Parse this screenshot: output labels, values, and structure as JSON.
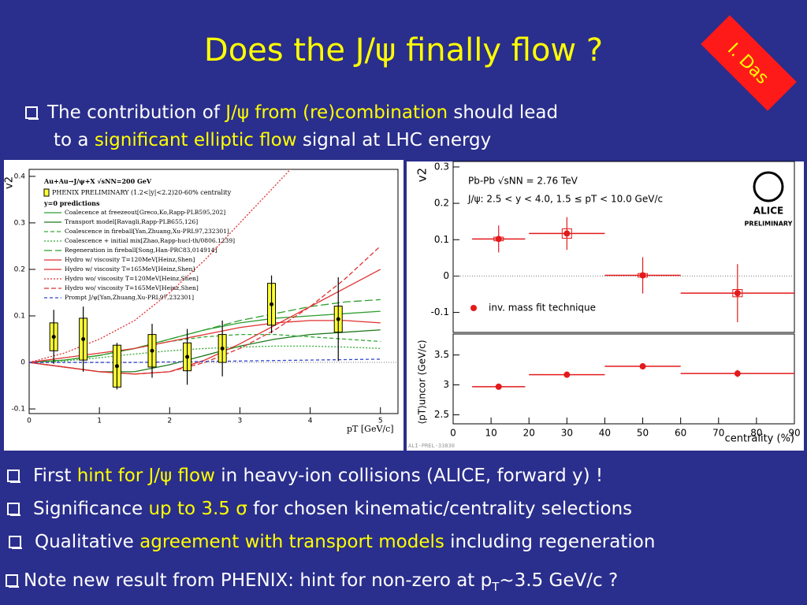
{
  "title": "Does the J/ψ finally flow ?",
  "corner_tag": "I. Das",
  "top_bullet": {
    "lines": [
      [
        {
          "text": "The contribution of "
        },
        {
          "text": "J/ψ from (re)combination",
          "highlight": true
        },
        {
          "text": " should lead"
        }
      ],
      [
        {
          "text": "to a "
        },
        {
          "text": "significant elliptic flow",
          "highlight": true
        },
        {
          "text": " signal at LHC energy"
        }
      ]
    ]
  },
  "bottom_bullets": [
    {
      "segments": [
        {
          "text": "First "
        },
        {
          "text": "hint for J/ψ flow",
          "highlight": true
        },
        {
          "text": " in heavy-ion collisions  (ALICE, forward y) !"
        }
      ]
    },
    {
      "segments": [
        {
          "text": "Significance "
        },
        {
          "text": "up to 3.5 σ",
          "highlight": true
        },
        {
          "text": " for chosen kinematic/centrality selections"
        }
      ]
    },
    {
      "segments": [
        {
          "text": "Qualitative "
        },
        {
          "text": "agreement with transport models",
          "highlight": true
        },
        {
          "text": " including regeneration"
        }
      ]
    },
    {
      "segments": [
        {
          "text": "Note new result from PHENIX: hint for non-zero at p"
        },
        {
          "text": "T",
          "sub": true
        },
        {
          "text": "~3.5 GeV/c ?"
        }
      ]
    }
  ],
  "chart_data": [
    {
      "type": "scatter",
      "xlabel": "pT [GeV/c]",
      "ylabel": "v2",
      "annotations": [
        "Au+Au→J/ψ+X  √sNN=200 GeV",
        "y=0 predictions"
      ],
      "xlim": [
        0,
        5.25
      ],
      "ylim": [
        -0.11,
        0.415
      ],
      "xticks": [
        0,
        1,
        2,
        3,
        4,
        5
      ],
      "yticks": [
        -0.1,
        0,
        0.1,
        0.2,
        0.3,
        0.4
      ],
      "series": [
        {
          "name": "PHENIX PRELIMINARY (1.2<|y|<2.2)20-60% centrality",
          "color": "#000000",
          "syst_color": "#ffff33",
          "x": [
            0.35,
            0.77,
            1.25,
            1.75,
            2.25,
            2.75,
            3.45,
            4.4
          ],
          "values": [
            0.055,
            0.05,
            -0.008,
            0.025,
            0.012,
            0.03,
            0.125,
            0.093
          ],
          "yerr": [
            0.058,
            0.07,
            0.05,
            0.058,
            0.06,
            0.06,
            0.062,
            0.09
          ],
          "syst": [
            0.03,
            0.045,
            0.045,
            0.035,
            0.03,
            0.03,
            0.045,
            0.028
          ]
        }
      ],
      "model_x": [
        0,
        0.5,
        1,
        1.5,
        2,
        2.5,
        3,
        3.5,
        4,
        4.5,
        5
      ],
      "models": [
        {
          "name": "Coalecence at freezeout[Greco,Ko,Rapp-PLB595,202]",
          "color": "#2e9e2e",
          "dash": "none",
          "values": [
            0,
            0.005,
            0.015,
            0.03,
            0.05,
            0.07,
            0.085,
            0.095,
            0.1,
            0.105,
            0.11
          ]
        },
        {
          "name": "Transport model[Ravagli,Rapp-PLB655,126]",
          "color": "#1f7a1f",
          "dash": "none",
          "values": [
            0,
            -0.01,
            -0.02,
            -0.02,
            -0.005,
            0.015,
            0.035,
            0.05,
            0.06,
            0.065,
            0.07
          ]
        },
        {
          "name": "Coalescence in fireball[Yan,Zhuang,Xu-PRL97,232301]",
          "color": "#33aa33",
          "dash": "5,3",
          "values": [
            0,
            0.005,
            0.015,
            0.03,
            0.045,
            0.055,
            0.06,
            0.06,
            0.055,
            0.05,
            0.045
          ]
        },
        {
          "name": "Coalescence + initial mix[Zhao,Rapp-hucl-th/0806.1239]",
          "color": "#33aa33",
          "dash": "2,2",
          "values": [
            0,
            0.003,
            0.01,
            0.018,
            0.025,
            0.03,
            0.033,
            0.035,
            0.035,
            0.033,
            0.03
          ]
        },
        {
          "name": "Regeneration in fireball[Song,Han-PRC83,014914]",
          "color": "#2e9e2e",
          "dash": "10,4",
          "values": [
            0,
            0.005,
            0.015,
            0.03,
            0.05,
            0.07,
            0.09,
            0.105,
            0.12,
            0.13,
            0.135
          ]
        },
        {
          "name": "Hydro w/ viscosity T=120MeV[Heinz,Shen]",
          "color": "#e03030",
          "dash": "none",
          "values": [
            0,
            0.01,
            0.02,
            0.03,
            0.045,
            0.06,
            0.075,
            0.085,
            0.09,
            0.09,
            0.085
          ]
        },
        {
          "name": "Hydro w/ viscosity T=165MeV[Heinz,Shen]",
          "color": "#e03030",
          "dash": "none",
          "values": [
            0,
            -0.01,
            -0.02,
            -0.025,
            -0.02,
            0.005,
            0.04,
            0.08,
            0.12,
            0.16,
            0.2
          ]
        },
        {
          "name": "Hydro wo/ viscosity T=120MeV[Heinz,Shen]",
          "color": "#e03030",
          "dash": "2,2",
          "values": [
            0,
            0.02,
            0.05,
            0.09,
            0.15,
            0.22,
            0.3,
            0.38,
            0.46,
            0.54,
            0.62
          ]
        },
        {
          "name": "Hydro wo/ viscosity T=165MeV[Heinz,Shen]",
          "color": "#e03030",
          "dash": "6,3",
          "values": [
            0,
            -0.01,
            -0.02,
            -0.025,
            -0.02,
            0,
            0.03,
            0.07,
            0.12,
            0.18,
            0.25
          ]
        },
        {
          "name": "Prompt J/ψ[Yan,Zhuang,Xu-PRL97,232301]",
          "color": "#3344cc",
          "dash": "4,3",
          "values": [
            0,
            0,
            0,
            0,
            0.001,
            0.002,
            0.003,
            0.004,
            0.005,
            0.006,
            0.007
          ]
        }
      ]
    },
    {
      "type": "scatter",
      "ylabel": "v2",
      "annotations": [
        "Pb-Pb  √sNN = 2.76 TeV",
        "J/ψ: 2.5 < y < 4.0,  1.5 ≤  pT < 10.0 GeV/c",
        "ALICE",
        "PRELIMINARY"
      ],
      "xlim": [
        0,
        90
      ],
      "ylim": [
        -0.155,
        0.315
      ],
      "yticks": [
        -0.1,
        0,
        0.1,
        0.2,
        0.3
      ],
      "series": [
        {
          "name": "inv. mass fit technique",
          "color": "#e31a1c",
          "x": [
            12,
            30,
            50,
            75
          ],
          "xerr": [
            7,
            10,
            10,
            15
          ],
          "values": [
            0.102,
            0.117,
            0.002,
            -0.047
          ],
          "yerr": [
            0.037,
            0.045,
            0.05,
            0.08
          ],
          "syst": [
            0.005,
            0.013,
            0.005,
            0.01
          ]
        }
      ]
    },
    {
      "type": "scatter",
      "xlabel": "centrality (%)",
      "ylabel": "⟨pT⟩uncor (GeV/c)",
      "annotations": [
        "ALI-PREL-33830"
      ],
      "xlim": [
        0,
        90
      ],
      "ylim": [
        2.35,
        3.85
      ],
      "xticks": [
        0,
        10,
        20,
        30,
        40,
        50,
        60,
        70,
        80,
        90
      ],
      "yticks": [
        2.5,
        3,
        3.5
      ],
      "series": [
        {
          "color": "#e31a1c",
          "x": [
            12,
            30,
            50,
            75
          ],
          "xerr": [
            7,
            10,
            10,
            15
          ],
          "values": [
            2.97,
            3.17,
            3.31,
            3.19
          ],
          "yerr": [
            0.02,
            0.03,
            0.05,
            0.06
          ]
        }
      ]
    }
  ]
}
